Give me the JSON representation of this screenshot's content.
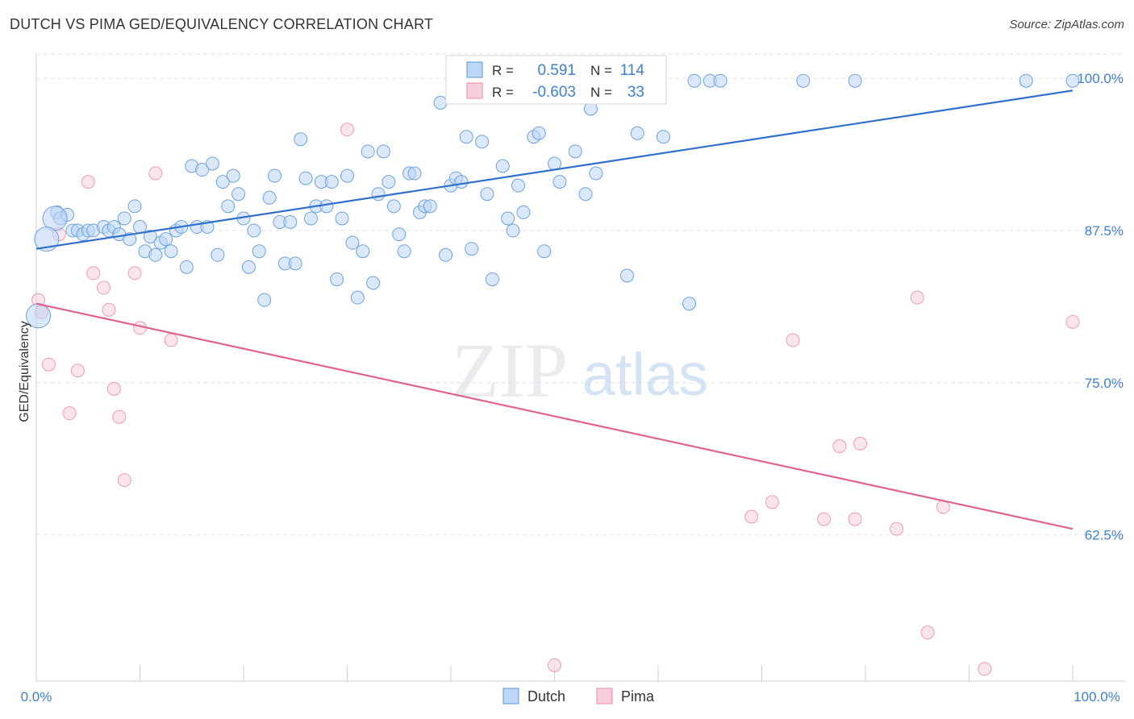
{
  "header": {
    "title": "DUTCH VS PIMA GED/EQUIVALENCY CORRELATION CHART",
    "source": "Source: ZipAtlas.com"
  },
  "watermark": {
    "zip": "ZIP",
    "atlas": "atlas"
  },
  "legend_top": {
    "rows": [
      {
        "r_label": "R =",
        "r_value": "0.591",
        "n_label": "N =",
        "n_value": "114",
        "color": "#6ea3e0"
      },
      {
        "r_label": "R =",
        "r_value": "-0.603",
        "n_label": "N =",
        "n_value": "33",
        "color": "#f19ab5"
      }
    ]
  },
  "legend_bottom": {
    "items": [
      "Dutch",
      "Pima"
    ]
  },
  "chart_data": {
    "type": "scatter",
    "title": "DUTCH VS PIMA GED/EQUIVALENCY CORRELATION CHART",
    "xlabel": "",
    "ylabel": "GED/Equivalency",
    "xlim": [
      0,
      100
    ],
    "ylim": [
      50.5,
      102
    ],
    "x_tick_labels": [
      "0.0%",
      "100.0%"
    ],
    "y_ticks": [
      62.5,
      75.0,
      87.5,
      100.0
    ],
    "y_tick_labels": [
      "62.5%",
      "75.0%",
      "87.5%",
      "100.0%"
    ],
    "grid": true,
    "colors": {
      "dutch": "#6ea3e0",
      "dutch_line": "#2f6fce",
      "pima": "#f19ab5",
      "pima_line": "#e0628f",
      "tick_label": "#3f7fd0"
    },
    "series": [
      {
        "name": "Dutch",
        "r": 0.591,
        "n": 114,
        "trend": [
          [
            0,
            86.0
          ],
          [
            100,
            99.0
          ]
        ],
        "points": [
          [
            2.0,
            89.0
          ],
          [
            2.3,
            88.5
          ],
          [
            3.0,
            88.8
          ],
          [
            3.5,
            87.5
          ],
          [
            4.0,
            87.5
          ],
          [
            4.5,
            87.2
          ],
          [
            5.0,
            87.5
          ],
          [
            5.5,
            87.5
          ],
          [
            6.5,
            87.8
          ],
          [
            7.0,
            87.5
          ],
          [
            7.5,
            87.8
          ],
          [
            8.0,
            87.2
          ],
          [
            8.5,
            88.5
          ],
          [
            9.0,
            86.8
          ],
          [
            9.5,
            89.5
          ],
          [
            10.0,
            87.8
          ],
          [
            10.5,
            85.8
          ],
          [
            11.0,
            87.0
          ],
          [
            11.5,
            85.5
          ],
          [
            12.0,
            86.5
          ],
          [
            12.5,
            86.8
          ],
          [
            13.0,
            85.8
          ],
          [
            13.5,
            87.5
          ],
          [
            14.0,
            87.8
          ],
          [
            14.5,
            84.5
          ],
          [
            15.0,
            92.8
          ],
          [
            15.5,
            87.8
          ],
          [
            16.0,
            92.5
          ],
          [
            16.5,
            87.8
          ],
          [
            17.0,
            93.0
          ],
          [
            17.5,
            85.5
          ],
          [
            18.0,
            91.5
          ],
          [
            18.5,
            89.5
          ],
          [
            19.0,
            92.0
          ],
          [
            19.5,
            90.5
          ],
          [
            20.0,
            88.5
          ],
          [
            20.5,
            84.5
          ],
          [
            21.0,
            87.5
          ],
          [
            21.5,
            85.8
          ],
          [
            22.0,
            81.8
          ],
          [
            22.5,
            90.2
          ],
          [
            23.0,
            92.0
          ],
          [
            23.5,
            88.2
          ],
          [
            24.0,
            84.8
          ],
          [
            24.5,
            88.2
          ],
          [
            25.0,
            84.8
          ],
          [
            25.5,
            95.0
          ],
          [
            26.0,
            91.8
          ],
          [
            26.5,
            88.5
          ],
          [
            27.0,
            89.5
          ],
          [
            27.5,
            91.5
          ],
          [
            28.0,
            89.5
          ],
          [
            28.5,
            91.5
          ],
          [
            29.0,
            83.5
          ],
          [
            29.5,
            88.5
          ],
          [
            30.0,
            92.0
          ],
          [
            30.5,
            86.5
          ],
          [
            31.0,
            82.0
          ],
          [
            31.5,
            85.8
          ],
          [
            32.0,
            94.0
          ],
          [
            32.5,
            83.2
          ],
          [
            33.0,
            90.5
          ],
          [
            33.5,
            94.0
          ],
          [
            34.0,
            91.5
          ],
          [
            34.5,
            89.5
          ],
          [
            35.0,
            87.2
          ],
          [
            35.5,
            85.8
          ],
          [
            36.0,
            92.2
          ],
          [
            36.5,
            92.2
          ],
          [
            37.0,
            89.0
          ],
          [
            37.5,
            89.5
          ],
          [
            38.0,
            89.5
          ],
          [
            39.0,
            98.0
          ],
          [
            39.5,
            85.5
          ],
          [
            40.0,
            91.2
          ],
          [
            40.5,
            91.8
          ],
          [
            41.0,
            91.5
          ],
          [
            41.5,
            95.2
          ],
          [
            42.0,
            86.0
          ],
          [
            43.0,
            94.8
          ],
          [
            43.5,
            90.5
          ],
          [
            44.0,
            83.5
          ],
          [
            45.0,
            92.8
          ],
          [
            45.5,
            88.5
          ],
          [
            46.0,
            87.5
          ],
          [
            46.5,
            91.2
          ],
          [
            47.0,
            89.0
          ],
          [
            48.0,
            95.2
          ],
          [
            48.5,
            95.5
          ],
          [
            49.0,
            85.8
          ],
          [
            50.0,
            93.0
          ],
          [
            50.5,
            91.5
          ],
          [
            51.5,
            99.8
          ],
          [
            52.0,
            94.0
          ],
          [
            53.0,
            90.5
          ],
          [
            53.5,
            97.5
          ],
          [
            54.0,
            92.2
          ],
          [
            55.0,
            98.8
          ],
          [
            57.0,
            83.8
          ],
          [
            58.0,
            95.5
          ],
          [
            60.5,
            95.2
          ],
          [
            63.0,
            81.5
          ],
          [
            63.5,
            99.8
          ],
          [
            65.0,
            99.8
          ],
          [
            66.0,
            99.8
          ],
          [
            74.0,
            99.8
          ],
          [
            79.0,
            99.8
          ],
          [
            95.5,
            99.8
          ],
          [
            100.0,
            99.8
          ]
        ],
        "large_points": [
          [
            1.8,
            88.5
          ],
          [
            1.0,
            86.8
          ],
          [
            0.2,
            80.5
          ]
        ]
      },
      {
        "name": "Pima",
        "r": -0.603,
        "n": 33,
        "trend": [
          [
            0,
            81.5
          ],
          [
            100,
            63.0
          ]
        ],
        "points": [
          [
            0.2,
            81.8
          ],
          [
            0.5,
            80.8
          ],
          [
            1.2,
            76.5
          ],
          [
            2.2,
            87.2
          ],
          [
            3.2,
            72.5
          ],
          [
            4.0,
            76.0
          ],
          [
            5.0,
            91.5
          ],
          [
            5.5,
            84.0
          ],
          [
            6.5,
            82.8
          ],
          [
            7.0,
            81.0
          ],
          [
            7.5,
            74.5
          ],
          [
            8.0,
            72.2
          ],
          [
            8.5,
            67.0
          ],
          [
            9.5,
            84.0
          ],
          [
            10.0,
            79.5
          ],
          [
            11.5,
            92.2
          ],
          [
            13.0,
            78.5
          ],
          [
            30.0,
            95.8
          ],
          [
            50.0,
            51.8
          ],
          [
            69.0,
            64.0
          ],
          [
            71.0,
            65.2
          ],
          [
            73.0,
            78.5
          ],
          [
            76.0,
            63.8
          ],
          [
            77.5,
            69.8
          ],
          [
            79.0,
            63.8
          ],
          [
            79.5,
            70.0
          ],
          [
            83.0,
            63.0
          ],
          [
            85.0,
            82.0
          ],
          [
            86.0,
            54.5
          ],
          [
            87.5,
            64.8
          ],
          [
            91.5,
            51.5
          ],
          [
            100.0,
            80.0
          ]
        ]
      }
    ]
  }
}
